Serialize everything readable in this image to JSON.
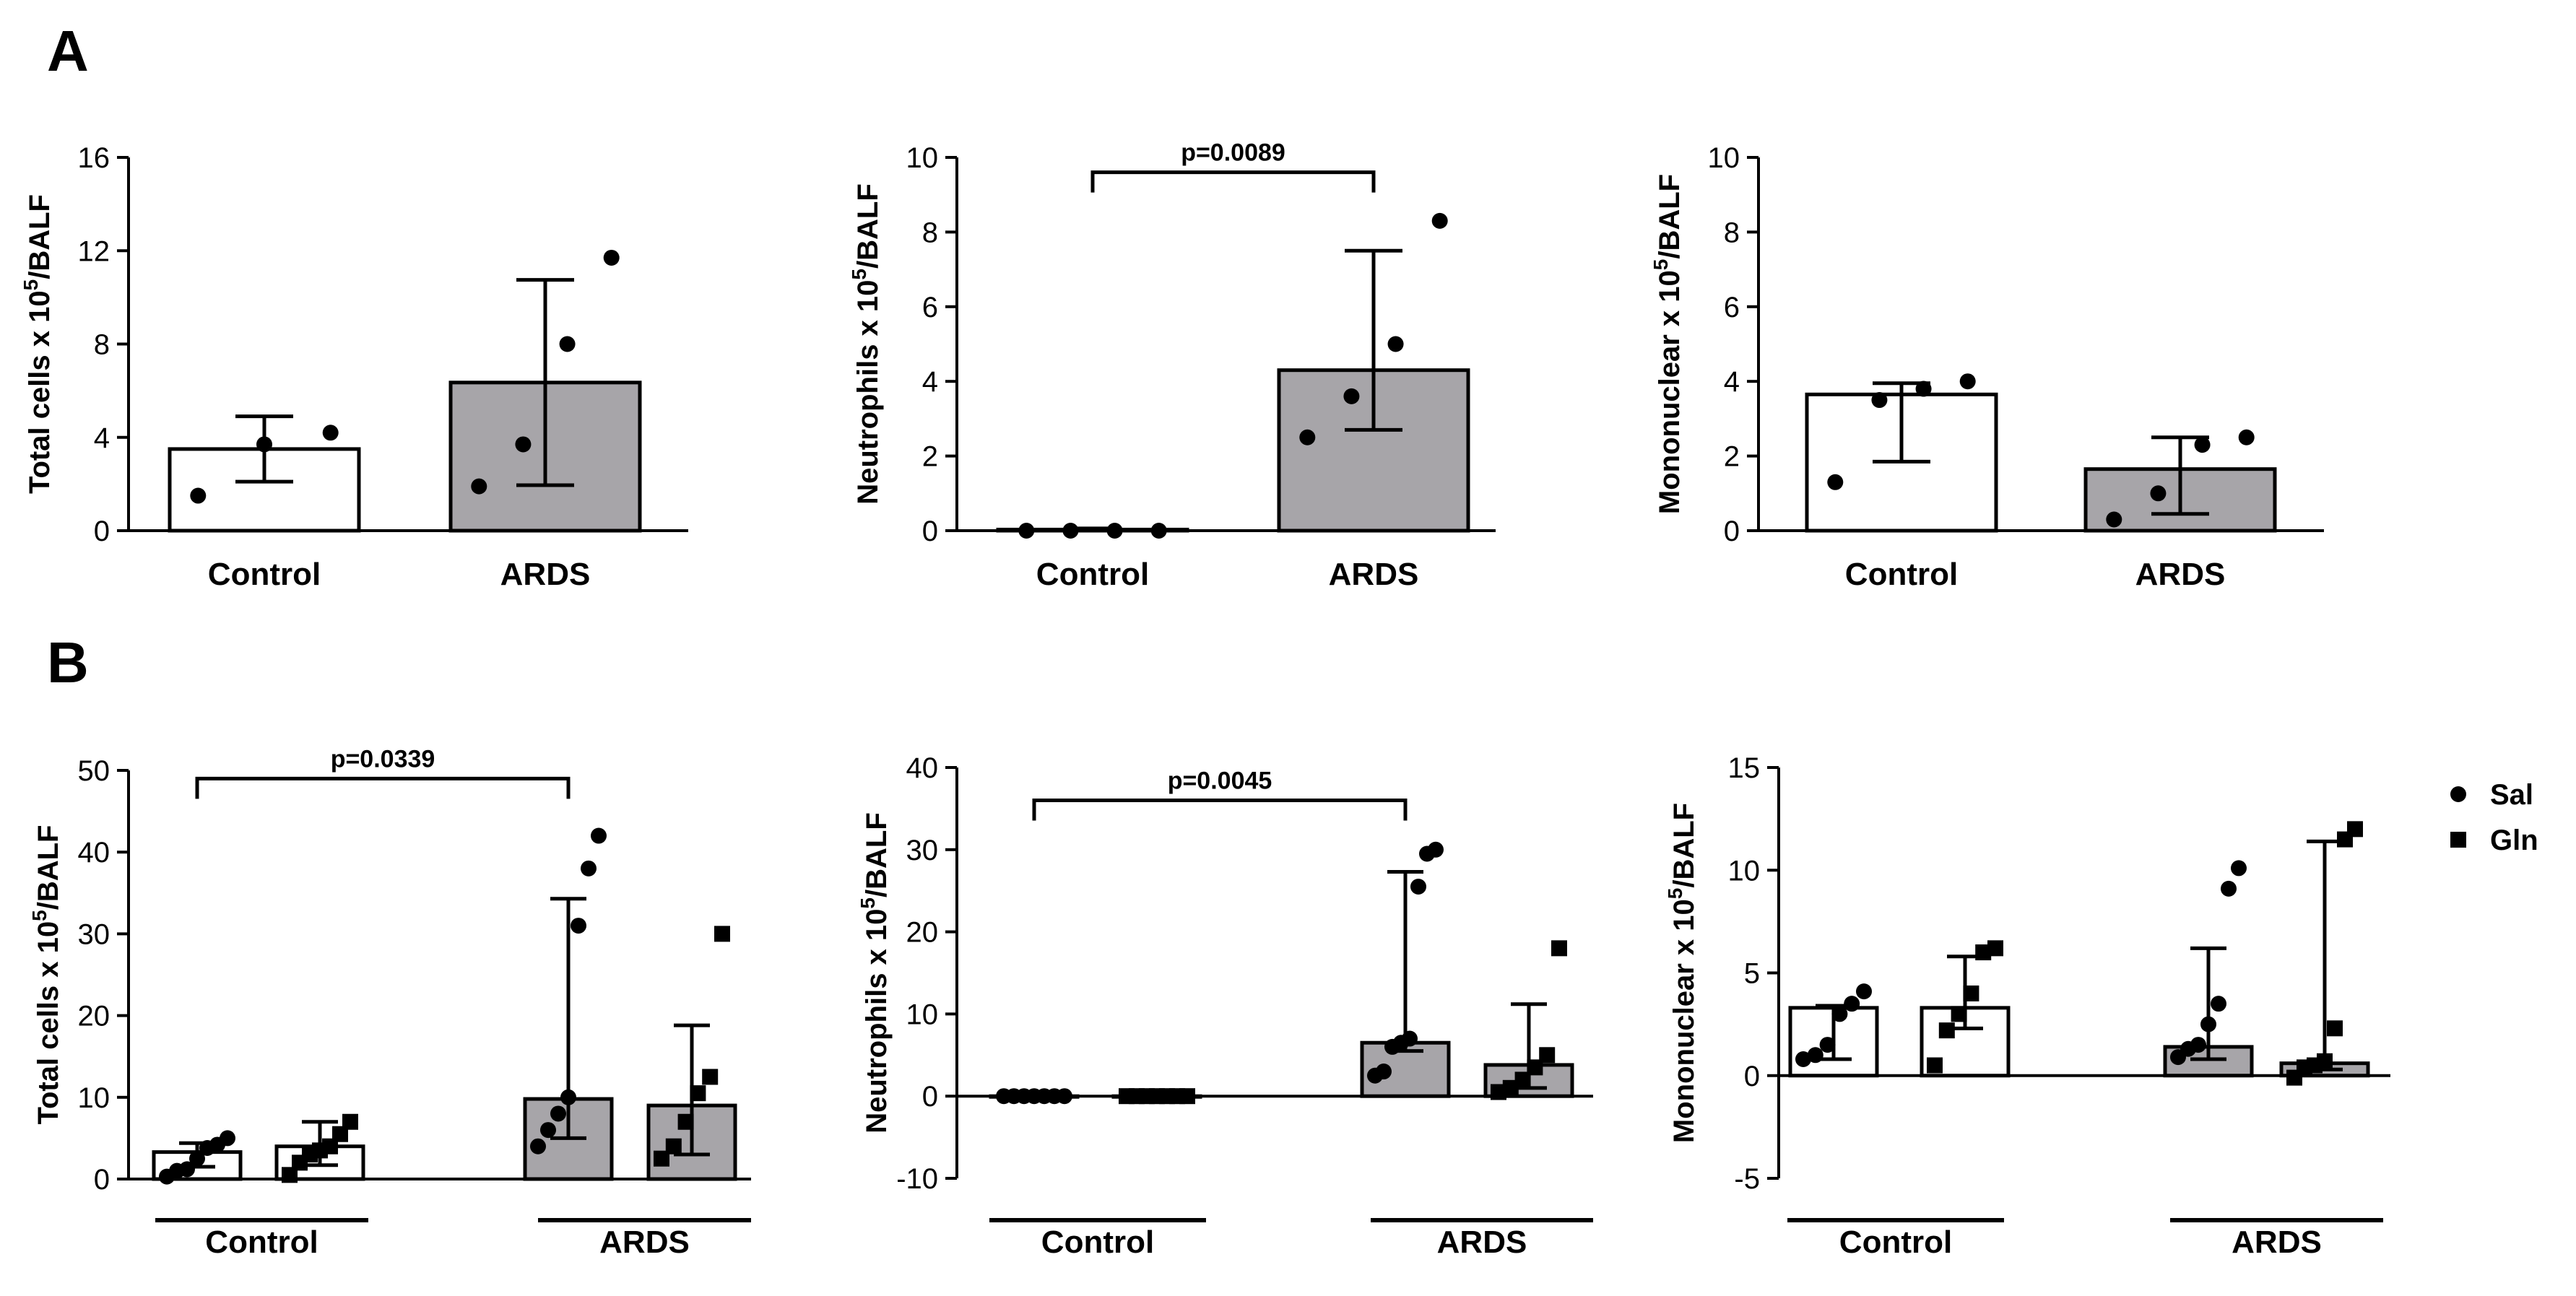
{
  "panel_labels": [
    "A",
    "B"
  ],
  "legend": [
    {
      "label": "Sal",
      "marker": "circle"
    },
    {
      "label": "Gln",
      "marker": "square"
    }
  ],
  "colors": {
    "control_fill": "#ffffff",
    "ards_fill": "#a7a5a9",
    "ink": "#000000"
  },
  "chart_data": [
    {
      "id": "A1",
      "panel": "A",
      "type": "bar",
      "ylabel_pre": "Total cells x 10",
      "ylabel_sup": "5",
      "ylabel_post": "/BALF",
      "ylim": [
        0,
        16
      ],
      "yticks": [
        0,
        4,
        8,
        12,
        16
      ],
      "ytick_labels": [
        "0",
        "4",
        "8",
        "12",
        "16"
      ],
      "categories": [
        "Control",
        "ARDS"
      ],
      "bars": [
        {
          "group": "Control",
          "value": 3.5,
          "err_low": 2.1,
          "err_high": 4.9,
          "points": [
            1.5,
            3.7,
            4.2
          ],
          "marker": "circle"
        },
        {
          "group": "ARDS",
          "value": 6.35,
          "err_low": 1.95,
          "err_high": 10.75,
          "points": [
            1.9,
            3.7,
            8.0,
            11.7
          ],
          "marker": "circle"
        }
      ],
      "annotations": []
    },
    {
      "id": "A2",
      "panel": "A",
      "type": "bar",
      "ylabel_pre": "Neutrophils x 10",
      "ylabel_sup": "5",
      "ylabel_post": "/BALF",
      "ylim": [
        0,
        10
      ],
      "yticks": [
        0,
        2,
        4,
        6,
        8,
        10
      ],
      "ytick_labels": [
        "0",
        "2",
        "4",
        "6",
        "8",
        "10"
      ],
      "categories": [
        "Control",
        "ARDS"
      ],
      "bars": [
        {
          "group": "Control",
          "value": 0.03,
          "err_low": 0.0,
          "err_high": 0.06,
          "points": [
            0.0,
            0.0,
            0.0,
            0.0
          ],
          "marker": "circle"
        },
        {
          "group": "ARDS",
          "value": 4.3,
          "err_low": 2.7,
          "err_high": 7.5,
          "points": [
            2.5,
            3.6,
            5.0,
            8.3
          ],
          "marker": "circle"
        }
      ],
      "annotations": [
        {
          "text": "p=0.0089",
          "from": 0,
          "to": 1,
          "y": 9.6
        }
      ]
    },
    {
      "id": "A3",
      "panel": "A",
      "type": "bar",
      "ylabel_pre": "Mononuclear x 10",
      "ylabel_sup": "5",
      "ylabel_post": "/BALF",
      "ylim": [
        0,
        10
      ],
      "yticks": [
        0,
        2,
        4,
        6,
        8,
        10
      ],
      "ytick_labels": [
        "0",
        "2",
        "4",
        "6",
        "8",
        "10"
      ],
      "categories": [
        "Control",
        "ARDS"
      ],
      "bars": [
        {
          "group": "Control",
          "value": 3.65,
          "err_low": 1.85,
          "err_high": 3.95,
          "points": [
            1.3,
            3.5,
            3.8,
            4.0
          ],
          "marker": "circle"
        },
        {
          "group": "ARDS",
          "value": 1.65,
          "err_low": 0.45,
          "err_high": 2.5,
          "points": [
            0.3,
            1.0,
            2.3,
            2.5
          ],
          "marker": "circle"
        }
      ],
      "annotations": []
    },
    {
      "id": "B1",
      "panel": "B",
      "type": "bar",
      "ylabel_pre": "Total cells x 10",
      "ylabel_sup": "5",
      "ylabel_post": "/BALF",
      "ylim": [
        0,
        50
      ],
      "yticks": [
        0,
        10,
        20,
        30,
        40,
        50
      ],
      "ytick_labels": [
        "0",
        "10",
        "20",
        "30",
        "40",
        "50"
      ],
      "categories": [
        "Control",
        "ARDS"
      ],
      "bars": [
        {
          "group": "Control",
          "treatment": "Sal",
          "value": 3.3,
          "err_low": 1.5,
          "err_high": 4.4,
          "points": [
            0.3,
            1.0,
            1.2,
            2.5,
            3.8,
            4.2,
            5.0
          ],
          "marker": "circle"
        },
        {
          "group": "Control",
          "treatment": "Gln",
          "value": 4.0,
          "err_low": 1.7,
          "err_high": 7.0,
          "points": [
            0.5,
            2.0,
            3.0,
            3.5,
            4.0,
            5.5,
            7.0
          ],
          "marker": "square"
        },
        {
          "group": "ARDS",
          "treatment": "Sal",
          "value": 9.8,
          "err_low": 5.0,
          "err_high": 34.3,
          "points": [
            4.0,
            6.0,
            8.0,
            10.0,
            31.0,
            38.0,
            42.0
          ],
          "marker": "circle"
        },
        {
          "group": "ARDS",
          "treatment": "Gln",
          "value": 9.0,
          "err_low": 3.0,
          "err_high": 18.8,
          "points": [
            2.5,
            4.0,
            7.0,
            10.5,
            12.5,
            30.0
          ],
          "marker": "square"
        }
      ],
      "annotations": [
        {
          "text": "p=0.0339",
          "from": 0,
          "to": 2,
          "y": 49
        }
      ]
    },
    {
      "id": "B2",
      "panel": "B",
      "type": "bar",
      "ylabel_pre": "Neutrophils x 10",
      "ylabel_sup": "5",
      "ylabel_post": "/BALF",
      "ylim": [
        -10,
        40
      ],
      "yticks": [
        -10,
        0,
        10,
        20,
        30,
        40
      ],
      "ytick_labels": [
        "-10",
        "0",
        "10",
        "20",
        "30",
        "40"
      ],
      "categories": [
        "Control",
        "ARDS"
      ],
      "bars": [
        {
          "group": "Control",
          "treatment": "Sal",
          "value": 0.0,
          "err_low": 0.0,
          "err_high": 0.0,
          "points": [
            0,
            0,
            0,
            0,
            0,
            0,
            0
          ],
          "marker": "circle"
        },
        {
          "group": "Control",
          "treatment": "Gln",
          "value": 0.0,
          "err_low": 0.0,
          "err_high": 0.0,
          "points": [
            0,
            0,
            0,
            0,
            0,
            0,
            0
          ],
          "marker": "square"
        },
        {
          "group": "ARDS",
          "treatment": "Sal",
          "value": 6.5,
          "err_low": 5.5,
          "err_high": 27.3,
          "points": [
            2.5,
            3.0,
            6.0,
            6.5,
            7.0,
            25.5,
            29.5,
            30.0
          ],
          "marker": "circle"
        },
        {
          "group": "ARDS",
          "treatment": "Gln",
          "value": 3.8,
          "err_low": 1.0,
          "err_high": 11.2,
          "points": [
            0.5,
            1.0,
            2.0,
            3.5,
            5.0,
            18.0
          ],
          "marker": "square"
        }
      ],
      "annotations": [
        {
          "text": "p=0.0045",
          "from": 0,
          "to": 2,
          "y": 36
        }
      ]
    },
    {
      "id": "B3",
      "panel": "B",
      "type": "bar",
      "ylabel_pre": "Mononuclear x 10",
      "ylabel_sup": "5",
      "ylabel_post": "/BALF",
      "ylim": [
        -5,
        15
      ],
      "yticks": [
        -5,
        0,
        5,
        10,
        15
      ],
      "ytick_labels": [
        "-5",
        "0",
        "5",
        "10",
        "15"
      ],
      "categories": [
        "Control",
        "ARDS"
      ],
      "bars": [
        {
          "group": "Control",
          "treatment": "Sal",
          "value": 3.3,
          "err_low": 0.8,
          "err_high": 3.4,
          "points": [
            0.8,
            1.0,
            1.5,
            3.0,
            3.5,
            4.1
          ],
          "marker": "circle"
        },
        {
          "group": "Control",
          "treatment": "Gln",
          "value": 3.3,
          "err_low": 2.3,
          "err_high": 5.8,
          "points": [
            0.5,
            2.2,
            3.0,
            4.0,
            6.0,
            6.2
          ],
          "marker": "square"
        },
        {
          "group": "ARDS",
          "treatment": "Sal",
          "value": 1.4,
          "err_low": 0.8,
          "err_high": 6.2,
          "points": [
            0.9,
            1.3,
            1.5,
            2.5,
            3.5,
            9.1,
            10.1
          ],
          "marker": "circle"
        },
        {
          "group": "ARDS",
          "treatment": "Gln",
          "value": 0.6,
          "err_low": 0.3,
          "err_high": 11.4,
          "points": [
            -0.1,
            0.4,
            0.5,
            0.7,
            2.3,
            11.5,
            12.0
          ],
          "marker": "square"
        }
      ],
      "annotations": []
    }
  ]
}
